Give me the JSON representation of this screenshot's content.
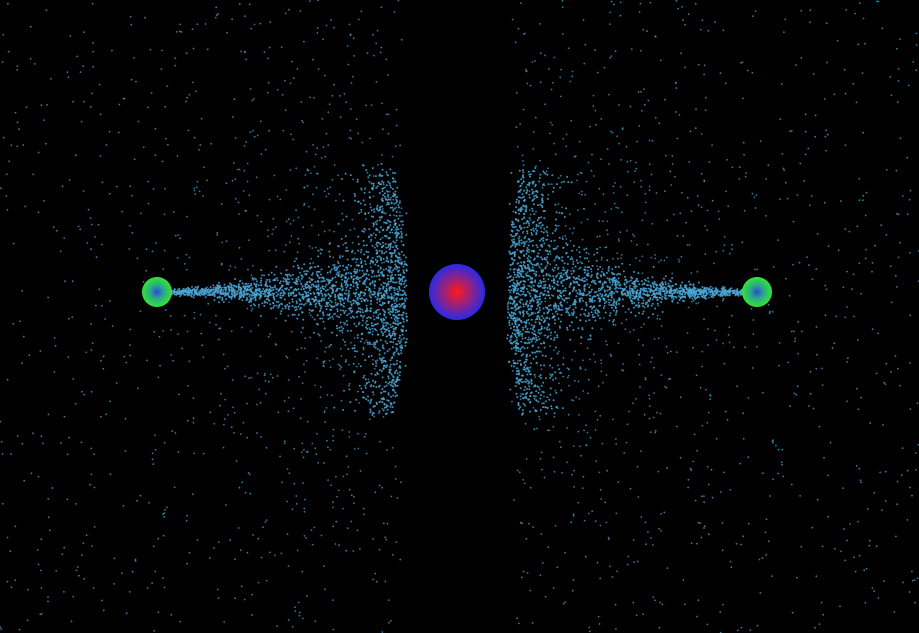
{
  "scene": {
    "background_color": "#000000",
    "particle_color": "#4aa6d6",
    "central_body": {
      "name": "central-attractor",
      "inner_color": "#ff1a1a",
      "outer_color": "#2a2ae6"
    },
    "emitters": [
      {
        "name": "left-emitter",
        "inner_color": "#2a4bd6",
        "outer_color": "#33e633"
      },
      {
        "name": "right-emitter",
        "inner_color": "#2a4bd6",
        "outer_color": "#33e633"
      }
    ]
  }
}
